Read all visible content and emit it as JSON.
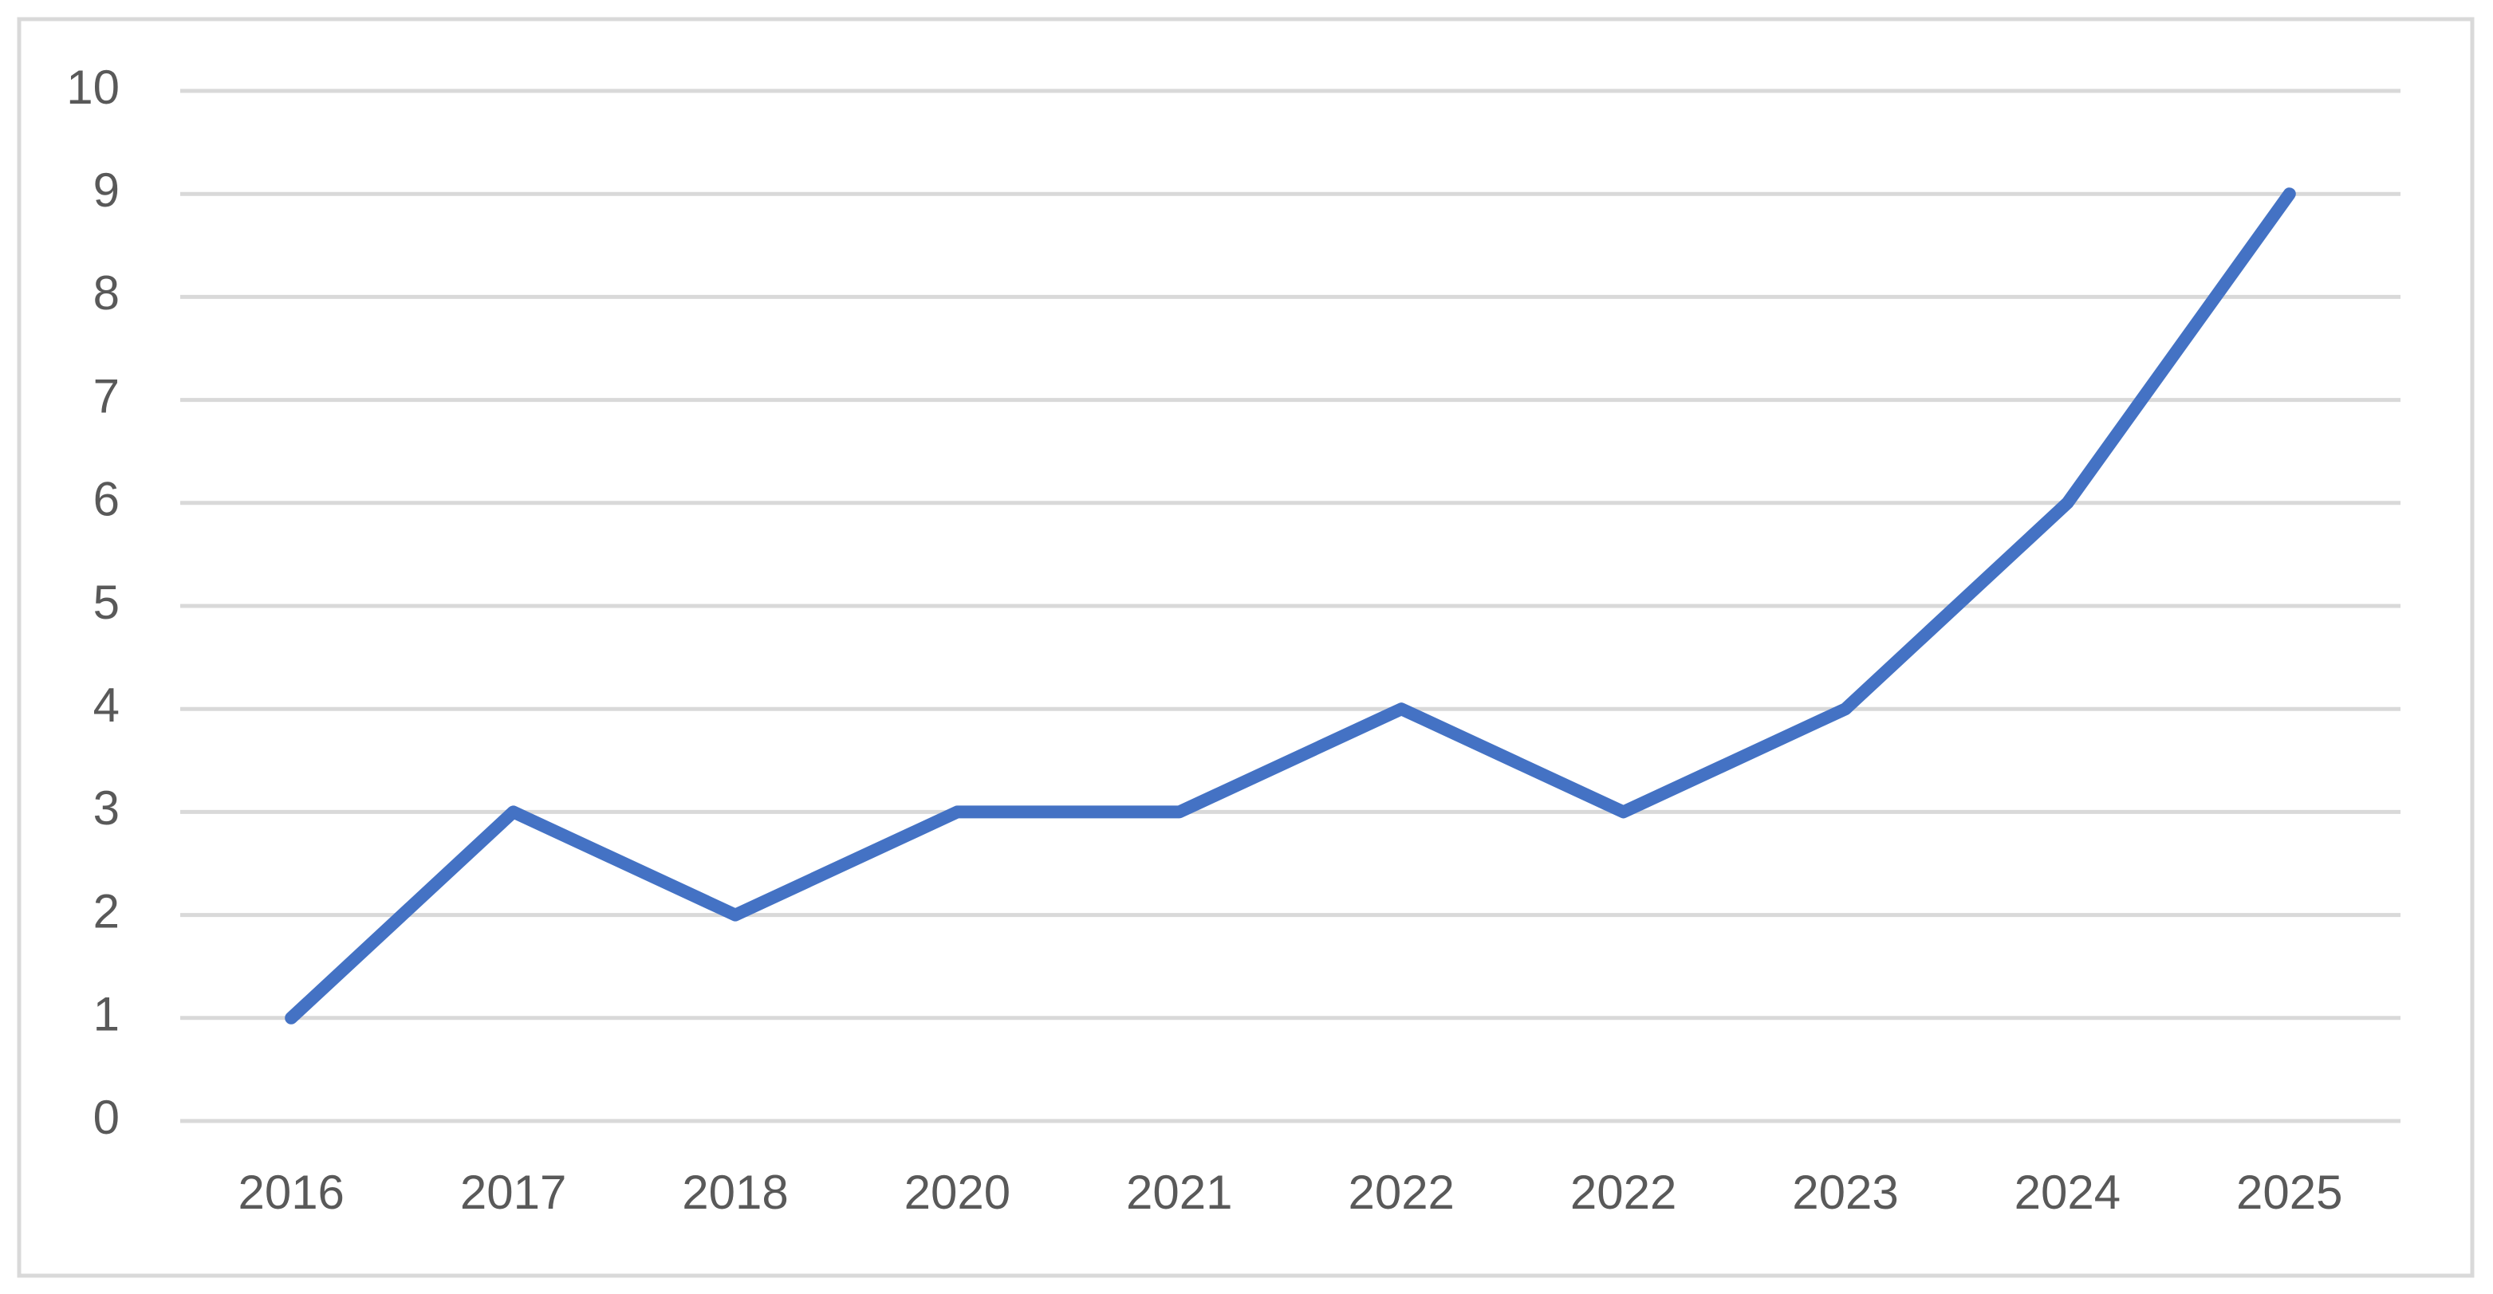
{
  "chart_data": {
    "type": "line",
    "categories": [
      "2016",
      "2017",
      "2018",
      "2020",
      "2021",
      "2022",
      "2022",
      "2023",
      "2024",
      "2025"
    ],
    "values": [
      1,
      3,
      2,
      3,
      3,
      4,
      3,
      4,
      6,
      9
    ],
    "color": "#4472c4",
    "ylim": [
      0,
      10
    ],
    "yticks": [
      0,
      1,
      2,
      3,
      4,
      5,
      6,
      7,
      8,
      9,
      10
    ],
    "grid": true
  }
}
